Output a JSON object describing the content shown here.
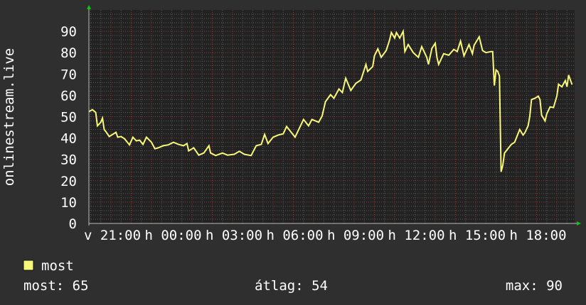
{
  "chart_data": {
    "type": "line",
    "title": "",
    "ylabel": "onlinestream.live",
    "xlabel": "",
    "ylim": [
      0,
      100
    ],
    "xlim": [
      "v 19:55",
      "h 19:50"
    ],
    "grid": true,
    "yticks": [
      0,
      10,
      20,
      30,
      40,
      50,
      60,
      70,
      80,
      90
    ],
    "xticks": [
      "v 21:00",
      "h 00:00",
      "h 03:00",
      "h 06:00",
      "h 09:00",
      "h 12:00",
      "h 15:00",
      "h 18:00"
    ],
    "legend_position": "bottom-left",
    "colors": {
      "background": "#2f2f2f",
      "plot_background": "#222222",
      "line": "#f7f77a",
      "major_grid": "#8a3a3a",
      "minor_grid": "#5a5a5a",
      "axis_arrow": "#00cc00"
    },
    "series": [
      {
        "name": "most",
        "points": [
          [
            "v 19:55",
            52.4
          ],
          [
            "v 20:05",
            53.3
          ],
          [
            "v 20:15",
            52
          ],
          [
            "v 20:20",
            45.7
          ],
          [
            "v 20:30",
            47.4
          ],
          [
            "v 20:35",
            49.3
          ],
          [
            "v 20:40",
            44
          ],
          [
            "v 20:45",
            43
          ],
          [
            "v 20:55",
            40.7
          ],
          [
            "v 21:15",
            42.7
          ],
          [
            "v 21:20",
            40.4
          ],
          [
            "v 21:30",
            40.7
          ],
          [
            "v 21:40",
            39.7
          ],
          [
            "v 21:55",
            36.8
          ],
          [
            "v 22:05",
            40.4
          ],
          [
            "v 22:15",
            38.7
          ],
          [
            "v 22:25",
            39
          ],
          [
            "v 22:35",
            37
          ],
          [
            "v 22:45",
            40.4
          ],
          [
            "v 23:00",
            38
          ],
          [
            "v 23:10",
            35
          ],
          [
            "v 23:20",
            35.4
          ],
          [
            "v 23:35",
            36.4
          ],
          [
            "v 23:50",
            36.8
          ],
          [
            "h 00:05",
            38
          ],
          [
            "h 00:20",
            37
          ],
          [
            "h 00:35",
            36.4
          ],
          [
            "h 00:45",
            37.4
          ],
          [
            "h 00:50",
            34
          ],
          [
            "h 01:05",
            35.4
          ],
          [
            "h 01:20",
            32
          ],
          [
            "h 01:35",
            33
          ],
          [
            "h 01:50",
            36.4
          ],
          [
            "h 01:55",
            33
          ],
          [
            "h 02:10",
            31.8
          ],
          [
            "h 02:30",
            33
          ],
          [
            "h 02:45",
            32
          ],
          [
            "h 03:05",
            32.4
          ],
          [
            "h 03:20",
            33.8
          ],
          [
            "h 03:35",
            32.4
          ],
          [
            "h 03:55",
            31.8
          ],
          [
            "h 04:10",
            36.4
          ],
          [
            "h 04:25",
            37
          ],
          [
            "h 04:35",
            41.7
          ],
          [
            "h 04:45",
            37.4
          ],
          [
            "h 05:00",
            40.4
          ],
          [
            "h 05:15",
            41.4
          ],
          [
            "h 05:30",
            42
          ],
          [
            "h 05:40",
            45.4
          ],
          [
            "h 06:05",
            40.4
          ],
          [
            "h 06:30",
            48.7
          ],
          [
            "h 06:45",
            45.7
          ],
          [
            "h 06:55",
            48.7
          ],
          [
            "h 07:15",
            47.4
          ],
          [
            "h 07:25",
            50.3
          ],
          [
            "h 07:35",
            57
          ],
          [
            "h 07:50",
            60.3
          ],
          [
            "h 08:00",
            58.6
          ],
          [
            "h 08:15",
            63
          ],
          [
            "h 08:25",
            61.3
          ],
          [
            "h 08:35",
            68
          ],
          [
            "h 08:50",
            62.3
          ],
          [
            "h 09:05",
            65.6
          ],
          [
            "h 09:20",
            67.2
          ],
          [
            "h 09:35",
            74.5
          ],
          [
            "h 09:40",
            71.2
          ],
          [
            "h 09:55",
            73.5
          ],
          [
            "h 10:00",
            78.5
          ],
          [
            "h 10:10",
            81.8
          ],
          [
            "h 10:20",
            77.8
          ],
          [
            "h 10:35",
            81
          ],
          [
            "h 10:45",
            86
          ],
          [
            "h 10:50",
            89.4
          ],
          [
            "h 11:00",
            86.8
          ],
          [
            "h 11:05",
            89.4
          ],
          [
            "h 11:15",
            86.8
          ],
          [
            "h 11:25",
            90
          ],
          [
            "h 11:30",
            80.5
          ],
          [
            "h 11:40",
            83.8
          ],
          [
            "h 11:55",
            80
          ],
          [
            "h 12:10",
            77.8
          ],
          [
            "h 12:20",
            82.8
          ],
          [
            "h 12:35",
            77.8
          ],
          [
            "h 12:40",
            74.5
          ],
          [
            "h 12:50",
            82
          ],
          [
            "h 13:00",
            84.4
          ],
          [
            "h 13:05",
            77.8
          ],
          [
            "h 13:10",
            74.5
          ],
          [
            "h 13:25",
            79.5
          ],
          [
            "h 13:40",
            78.8
          ],
          [
            "h 13:55",
            81.5
          ],
          [
            "h 14:05",
            80.5
          ],
          [
            "h 14:15",
            85.4
          ],
          [
            "h 14:25",
            78.5
          ],
          [
            "h 14:40",
            83.8
          ],
          [
            "h 14:50",
            79.5
          ],
          [
            "h 14:55",
            83.4
          ],
          [
            "h 15:10",
            87.4
          ],
          [
            "h 15:20",
            81
          ],
          [
            "h 15:30",
            80
          ],
          [
            "h 15:45",
            80.5
          ],
          [
            "h 15:50",
            80.5
          ],
          [
            "h 15:55",
            64.6
          ],
          [
            "h 16:00",
            71.9
          ],
          [
            "h 16:05",
            71.2
          ],
          [
            "h 16:10",
            69
          ],
          [
            "h 16:15",
            24.2
          ],
          [
            "h 16:20",
            27.2
          ],
          [
            "h 16:25",
            33
          ],
          [
            "h 16:30",
            34
          ],
          [
            "h 16:45",
            37
          ],
          [
            "h 16:55",
            38
          ],
          [
            "h 17:10",
            44
          ],
          [
            "h 17:20",
            41.4
          ],
          [
            "h 17:25",
            42.4
          ],
          [
            "h 17:35",
            45.7
          ],
          [
            "h 17:40",
            50.3
          ],
          [
            "h 17:45",
            58
          ],
          [
            "h 17:55",
            58.6
          ],
          [
            "h 18:05",
            59.6
          ],
          [
            "h 18:10",
            58
          ],
          [
            "h 18:15",
            50.7
          ],
          [
            "h 18:25",
            48
          ],
          [
            "h 18:30",
            51.3
          ],
          [
            "h 18:40",
            54.6
          ],
          [
            "h 18:50",
            54.3
          ],
          [
            "h 19:00",
            59.6
          ],
          [
            "h 19:05",
            65.2
          ],
          [
            "h 19:15",
            64
          ],
          [
            "h 19:25",
            66.9
          ],
          [
            "h 19:30",
            64
          ],
          [
            "h 19:35",
            69.5
          ],
          [
            "h 19:45",
            65
          ]
        ]
      }
    ]
  },
  "legend": {
    "series_label": "most",
    "stats": {
      "current_label": "most: 65",
      "average_label": "átlag: 54",
      "max_label": "max: 90"
    }
  }
}
